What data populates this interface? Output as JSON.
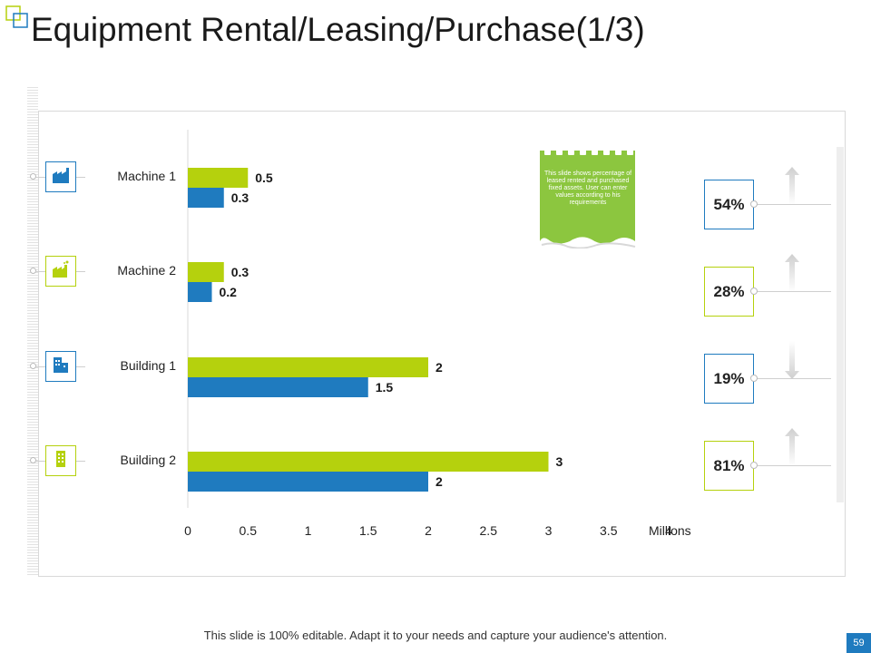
{
  "slide": {
    "title": "Equipment Rental/Leasing/Purchase(1/3)",
    "footer": "This slide is 100% editable. Adapt it to your needs and capture your audience's attention.",
    "page_number": "59"
  },
  "colors": {
    "series_green": "#b5d10d",
    "series_blue": "#1f7bbf",
    "accent_note": "#8cc63f"
  },
  "note": {
    "text": "This slide shows percentage of leased rented and purchased fixed assets. User can enter values according to his requirements"
  },
  "categories": [
    {
      "label": "Machine 1",
      "icon": "factory-icon",
      "box_color": "#1f7bbf"
    },
    {
      "label": "Machine 2",
      "icon": "industry-icon",
      "box_color": "#b5d10d"
    },
    {
      "label": "Building 1",
      "icon": "buildings-icon",
      "box_color": "#1f7bbf"
    },
    {
      "label": "Building 2",
      "icon": "office-building-icon",
      "box_color": "#b5d10d"
    }
  ],
  "percentages": [
    {
      "value": "54%",
      "border": "#1f7bbf",
      "direction": "up"
    },
    {
      "value": "28%",
      "border": "#b5d10d",
      "direction": "up"
    },
    {
      "value": "19%",
      "border": "#1f7bbf",
      "direction": "down"
    },
    {
      "value": "81%",
      "border": "#b5d10d",
      "direction": "up"
    }
  ],
  "chart_data": {
    "type": "bar",
    "orientation": "horizontal",
    "categories": [
      "Machine 1",
      "Machine 2",
      "Building 1",
      "Building 2"
    ],
    "series": [
      {
        "values": [
          0.5,
          0.3,
          2,
          3
        ],
        "color": "#b5d10d"
      },
      {
        "values": [
          0.3,
          0.2,
          1.5,
          2
        ],
        "color": "#1f7bbf"
      }
    ],
    "xticks": [
      "0",
      "0.5",
      "1",
      "1.5",
      "2",
      "2.5",
      "3",
      "3.5",
      "4"
    ],
    "xlim": [
      0,
      4
    ],
    "xlabel": "Millions",
    "data_labels": true,
    "grid": false,
    "legend": "none"
  }
}
